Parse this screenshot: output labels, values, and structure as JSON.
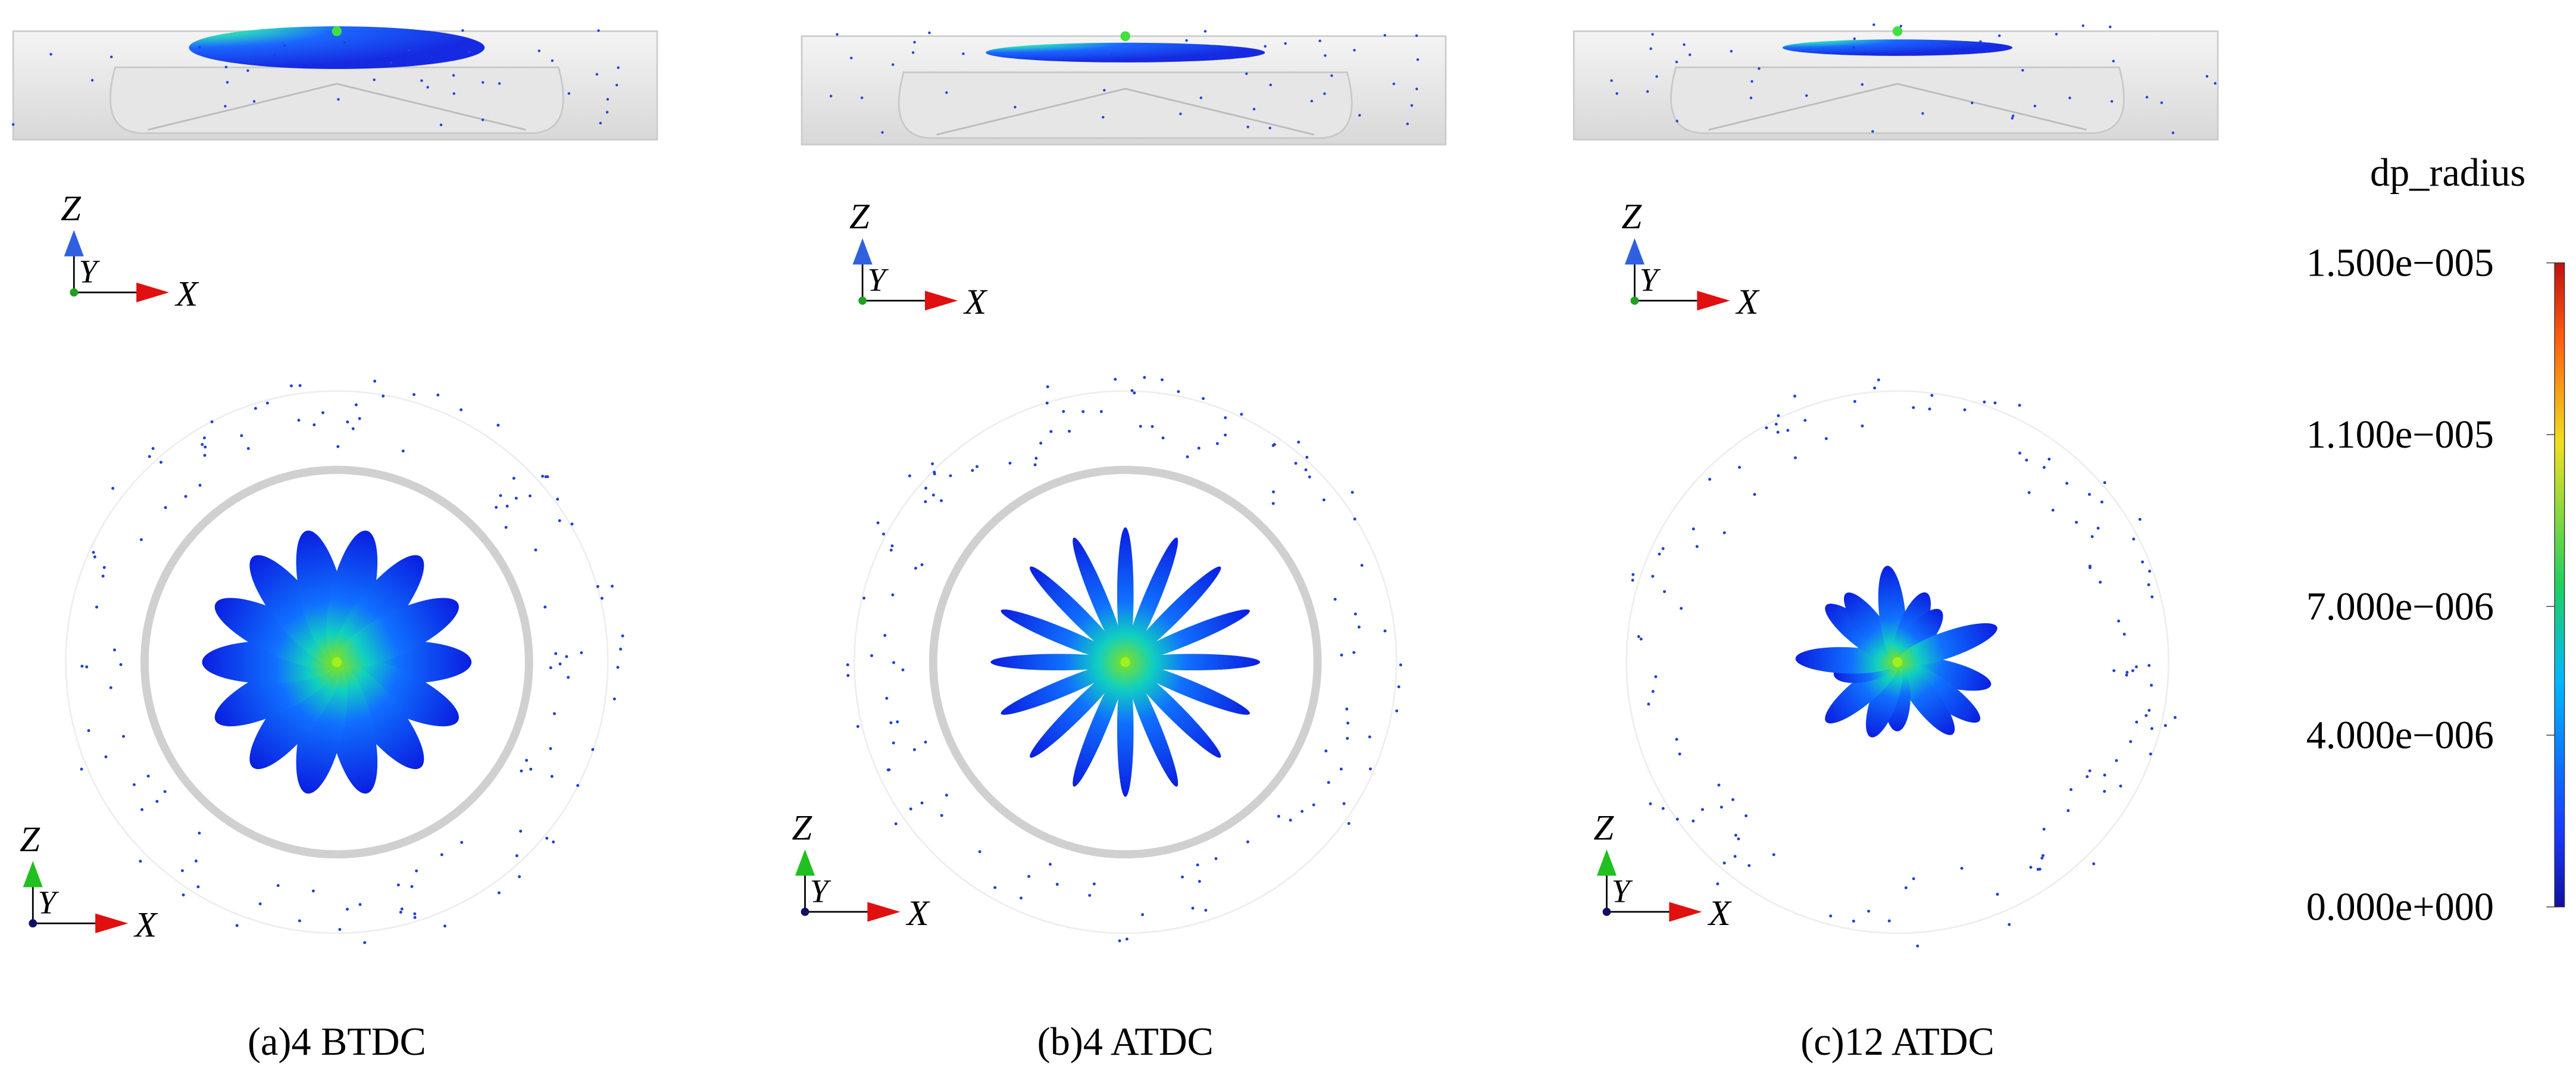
{
  "panels": [
    {
      "caption": "(a)4 BTDC",
      "side_triad": {
        "z": "Z",
        "y": "Y",
        "x": "X"
      },
      "top_triad": {
        "z": "Z",
        "y": "Y",
        "x": "X"
      }
    },
    {
      "caption": "(b)4 ATDC",
      "side_triad": {
        "z": "Z",
        "y": "Y",
        "x": "X"
      },
      "top_triad": {
        "z": "Z",
        "y": "Y",
        "x": "X"
      }
    },
    {
      "caption": "(c)12 ATDC",
      "side_triad": {
        "z": "Z",
        "y": "Y",
        "x": "X"
      },
      "top_triad": {
        "z": "Z",
        "y": "Y",
        "x": "X"
      }
    }
  ],
  "colorbar": {
    "title": "dp_radius",
    "range": [
      0,
      1.5e-05
    ],
    "ticks": [
      {
        "value": 1.5e-05,
        "label": "1.500e−005"
      },
      {
        "value": 1.1e-05,
        "label": "1.100e−005"
      },
      {
        "value": 7e-06,
        "label": "7.000e−006"
      },
      {
        "value": 4e-06,
        "label": "4.000e−006"
      },
      {
        "value": 0,
        "label": "0.000e+000"
      }
    ]
  }
}
